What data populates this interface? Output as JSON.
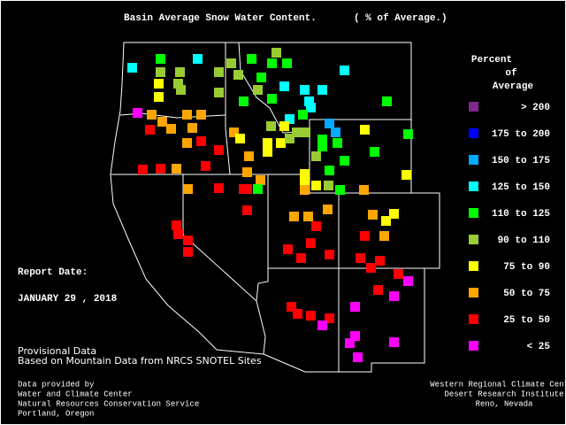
{
  "header": {
    "title": "Basin Average Snow Water Content.",
    "subtitle": "( % of Average.)"
  },
  "legend": {
    "title": [
      "Percent",
      "of",
      "Average"
    ],
    "items": [
      {
        "label": "> 200",
        "color": "#80288f"
      },
      {
        "label": "175 to 200",
        "color": "#0000ff"
      },
      {
        "label": "150 to 175",
        "color": "#00aaff"
      },
      {
        "label": "125 to 150",
        "color": "#00ffff"
      },
      {
        "label": "110 to 125",
        "color": "#00ff00"
      },
      {
        "label": "90 to 110",
        "color": "#99cc33"
      },
      {
        "label": "75 to 90",
        "color": "#ffff00"
      },
      {
        "label": "50 to 75",
        "color": "#ffa500"
      },
      {
        "label": "25 to 50",
        "color": "#ff0000"
      },
      {
        "label": "< 25",
        "color": "#ff00ff"
      }
    ]
  },
  "report": {
    "label": "Report Date:",
    "date": "JANUARY 29 , 2018"
  },
  "provisional": [
    "Provisional Data",
    "Based on Mountain Data from NRCS SNOTEL Sites"
  ],
  "credits_left": [
    "Data provided by",
    "Water and Climate Center",
    "Natural Resources Conservation Service",
    "Portland, Oregon"
  ],
  "credits_right": [
    "Western Regional Climate Center",
    "Desert Research Institute",
    "Reno, Nevada"
  ]
}
